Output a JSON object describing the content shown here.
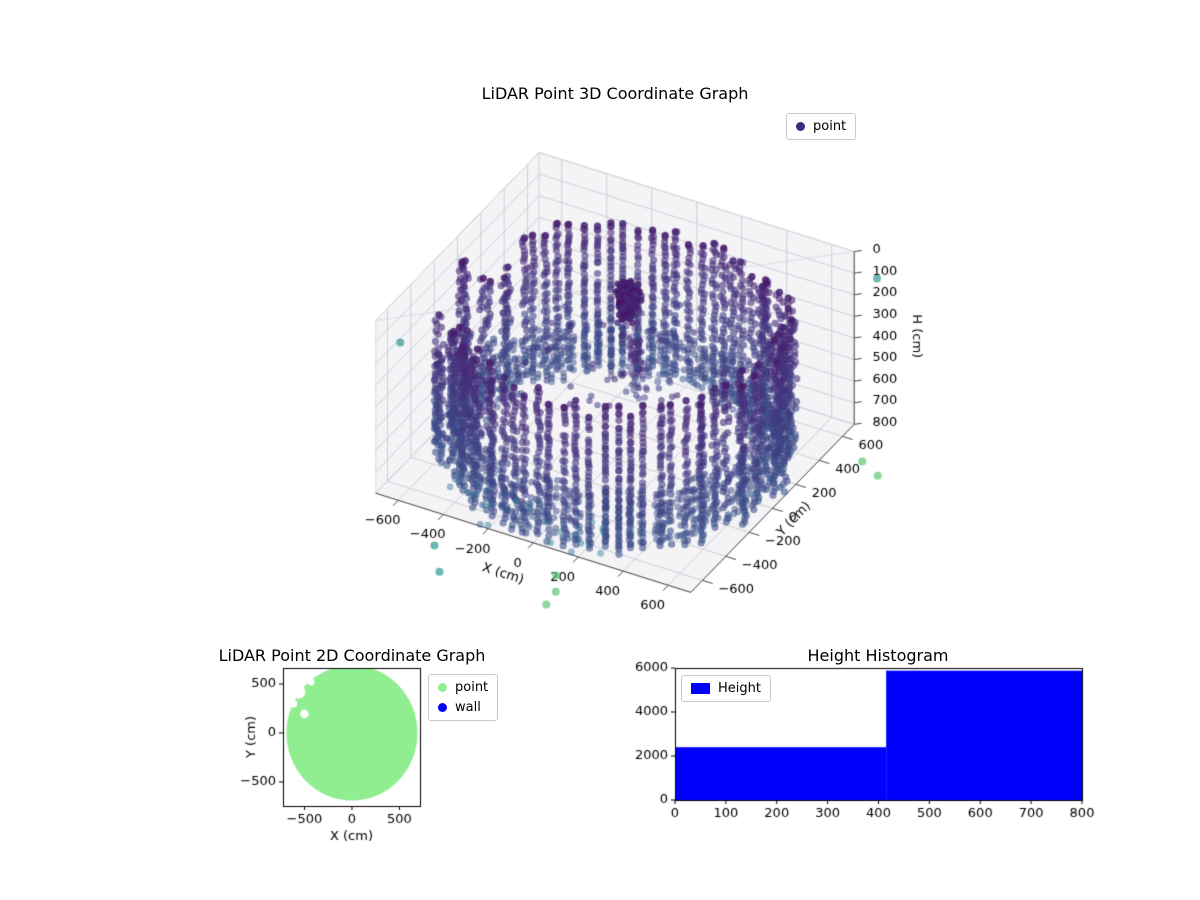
{
  "figure": {
    "background": "#ffffff"
  },
  "chart_data": [
    {
      "id": "lidar-3d",
      "type": "scatter",
      "projection": "3d",
      "title": "LiDAR Point 3D Coordinate Graph",
      "xlabel": "X (cm)",
      "ylabel": "Y (cm)",
      "zlabel": "H (cm)",
      "xlim": [
        -700,
        700
      ],
      "ylim": [
        -700,
        700
      ],
      "zlim": [
        0,
        800
      ],
      "z_axis_inverted": true,
      "xticks": [
        -600,
        -400,
        -200,
        0,
        200,
        400,
        600
      ],
      "yticks": [
        -600,
        -400,
        -200,
        0,
        200,
        400,
        600
      ],
      "zticks": [
        0,
        100,
        200,
        300,
        400,
        500,
        600,
        700,
        800
      ],
      "grid": true,
      "legend": {
        "position": "upper-right-outside",
        "entries": [
          {
            "label": "point",
            "color": "#3b2a7d"
          }
        ]
      },
      "point_cloud_summary": {
        "description": "Cylindrical room scan: dense ring wall of dark indigo points, central sensor cluster, sparse interior returns, few teal/green outliers",
        "ring_radius_cm": 660,
        "ring_height_range_cm": [
          115,
          800
        ],
        "ring_columns": 76,
        "gap_angle_ranges_rad": [
          [
            3.2,
            3.65
          ],
          [
            2.7,
            3.0
          ]
        ],
        "center_cluster": {
          "x": 0,
          "y": 110,
          "z_range": [
            60,
            300
          ],
          "count": 260
        },
        "center_column": {
          "z_range": [
            150,
            540
          ],
          "count": 70
        },
        "interior_scatter_count": 48,
        "front_low_scatter_count": 26,
        "colormap": "viridis-low",
        "alpha": 0.6,
        "outliers": [
          {
            "x": 760,
            "y": 780,
            "z": 150,
            "v": 0.5
          },
          {
            "x": -830,
            "y": -240,
            "z": 400,
            "v": 0.5
          },
          {
            "x": -320,
            "y": -930,
            "z": 790,
            "v": 0.5
          },
          {
            "x": -220,
            "y": -1080,
            "z": 795,
            "v": 0.5
          },
          {
            "x": 190,
            "y": -870,
            "z": 795,
            "v": 0.72
          },
          {
            "x": 240,
            "y": -970,
            "z": 798,
            "v": 0.72
          },
          {
            "x": 250,
            "y": -1070,
            "z": 798,
            "v": 0.72
          },
          {
            "x": 850,
            "y": 480,
            "z": 800,
            "v": 0.72
          },
          {
            "x": 950,
            "y": 420,
            "z": 800,
            "v": 0.72
          }
        ]
      }
    },
    {
      "id": "lidar-2d",
      "type": "scatter",
      "title": "LiDAR Point 2D Coordinate Graph",
      "xlabel": "X (cm)",
      "ylabel": "Y (cm)",
      "xlim": [
        -726,
        716
      ],
      "ylim": [
        -745,
        663
      ],
      "xticks": [
        -500,
        0,
        500
      ],
      "yticks": [
        500,
        0,
        -500
      ],
      "legend": {
        "position": "upper-right-outside",
        "entries": [
          {
            "label": "point",
            "color": "#90ee90"
          },
          {
            "label": "wall",
            "color": "#0000ff"
          }
        ]
      },
      "region": {
        "shape": "disc",
        "center": [
          0,
          0
        ],
        "radius_cm": 690,
        "color": "#90ee90",
        "holes": [
          {
            "x": -560,
            "y": 420,
            "r": 70
          },
          {
            "x": -500,
            "y": 195,
            "r": 45
          },
          {
            "x": -615,
            "y": 300,
            "r": 40
          },
          {
            "x": -430,
            "y": 520,
            "r": 35
          }
        ]
      }
    },
    {
      "id": "height-histogram",
      "type": "histogram",
      "title": "Height Histogram",
      "bar_color": "#0000ff",
      "xlim": [
        0,
        800
      ],
      "ylim": [
        0,
        6000
      ],
      "xticks": [
        0,
        100,
        200,
        300,
        400,
        500,
        600,
        700,
        800
      ],
      "yticks": [
        0,
        2000,
        4000,
        6000
      ],
      "legend": {
        "position": "upper-left-inside",
        "entries": [
          {
            "label": "Height",
            "color": "#0000ff"
          }
        ]
      },
      "bins": [
        {
          "x0": 0,
          "x1": 415,
          "count": 2400
        },
        {
          "x0": 415,
          "x1": 800,
          "count": 5880
        }
      ]
    }
  ]
}
